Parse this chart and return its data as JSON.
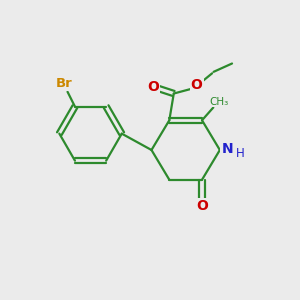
{
  "bg_color": "#ebebeb",
  "bond_color": "#2d8a2d",
  "bond_width": 1.6,
  "br_color": "#cc8800",
  "n_color": "#2222cc",
  "o_color": "#cc0000",
  "font_size": 9,
  "fig_size": [
    3.0,
    3.0
  ],
  "dpi": 100,
  "xlim": [
    0,
    10
  ],
  "ylim": [
    0,
    10
  ]
}
